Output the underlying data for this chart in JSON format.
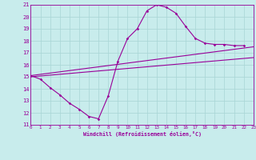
{
  "xlabel": "Windchill (Refroidissement éolien,°C)",
  "xlim": [
    0,
    23
  ],
  "ylim": [
    11,
    21
  ],
  "xticks": [
    0,
    1,
    2,
    3,
    4,
    5,
    6,
    7,
    8,
    9,
    10,
    11,
    12,
    13,
    14,
    15,
    16,
    17,
    18,
    19,
    20,
    21,
    22,
    23
  ],
  "yticks": [
    11,
    12,
    13,
    14,
    15,
    16,
    17,
    18,
    19,
    20,
    21
  ],
  "bg_color": "#c8ecec",
  "grid_color": "#a8d4d4",
  "line_color": "#990099",
  "series1_x": [
    0,
    1,
    2,
    3,
    4,
    5,
    6,
    7,
    8,
    9,
    10,
    11,
    12,
    13,
    14,
    15,
    16,
    17,
    18,
    19,
    20,
    21,
    22
  ],
  "series1_y": [
    15.1,
    14.8,
    14.1,
    13.5,
    12.8,
    12.3,
    11.7,
    11.5,
    13.4,
    16.3,
    18.2,
    19.0,
    20.5,
    21.0,
    20.8,
    20.3,
    19.2,
    18.2,
    17.8,
    17.7,
    17.7,
    17.6,
    17.6
  ],
  "series2_x": [
    0,
    23
  ],
  "series2_y": [
    15.0,
    16.6
  ],
  "series3_x": [
    0,
    23
  ],
  "series3_y": [
    15.1,
    17.5
  ],
  "marker_style": "D",
  "marker_size": 1.8
}
